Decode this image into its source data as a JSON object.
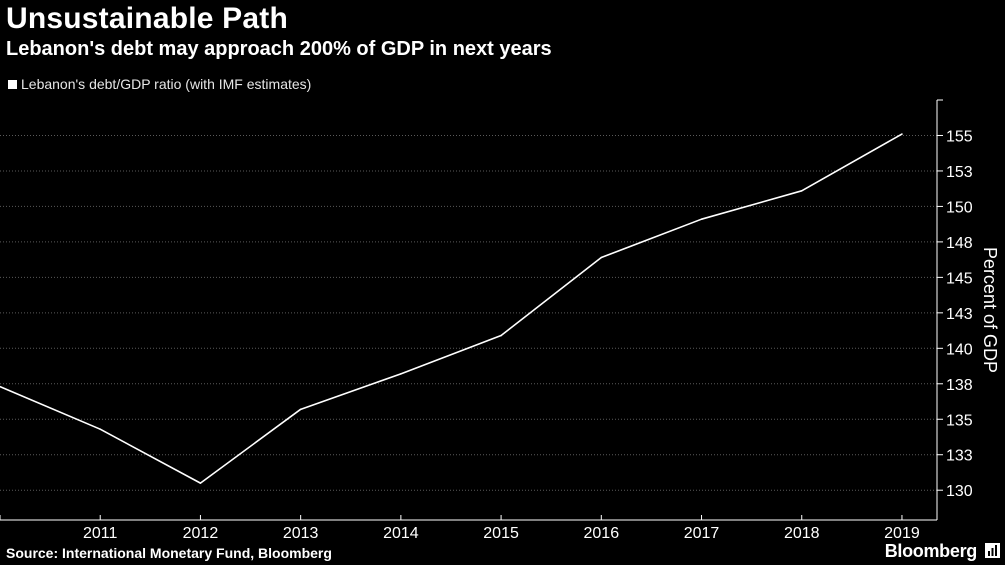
{
  "header": {
    "title": "Unsustainable Path",
    "subtitle": "Lebanon's debt may approach 200% of GDP in next years"
  },
  "footer": {
    "source": "Source: International Monetary Fund, Bloomberg",
    "brand": "Bloomberg"
  },
  "colors": {
    "background": "#000000",
    "line": "#ffffff",
    "grid": "#5a5a5a",
    "text": "#ffffff"
  },
  "icons": {
    "brand_icon": "bloomberg-terminal-icon"
  },
  "chart_data": {
    "type": "line",
    "title": "Unsustainable Path",
    "subtitle": "Lebanon's debt may approach 200% of GDP in next years",
    "ylabel": "Percent of GDP",
    "xlabel": "",
    "x": [
      2010,
      2011,
      2012,
      2013,
      2014,
      2015,
      2016,
      2017,
      2018,
      2019
    ],
    "x_tick_labels": [
      "2011",
      "2012",
      "2013",
      "2014",
      "2015",
      "2016",
      "2017",
      "2018",
      "2019"
    ],
    "y_tick_labels": [
      "130",
      "133",
      "135",
      "138",
      "140",
      "143",
      "145",
      "148",
      "150",
      "153",
      "155"
    ],
    "y_ticks": [
      130,
      132.5,
      135,
      137.5,
      140,
      142.5,
      145,
      147.5,
      150,
      152.5,
      155
    ],
    "ylim": [
      127.9,
      157.5
    ],
    "xlim": [
      2010,
      2019.2
    ],
    "y_axis_side": "right",
    "grid": "horizontal dotted",
    "legend_position": "top-left",
    "series": [
      {
        "name": "Lebanon's debt/GDP ratio (with IMF estimates)",
        "values": [
          137.3,
          134.3,
          130.5,
          135.7,
          138.2,
          140.9,
          146.4,
          149.1,
          151.1,
          155.1
        ]
      }
    ]
  }
}
